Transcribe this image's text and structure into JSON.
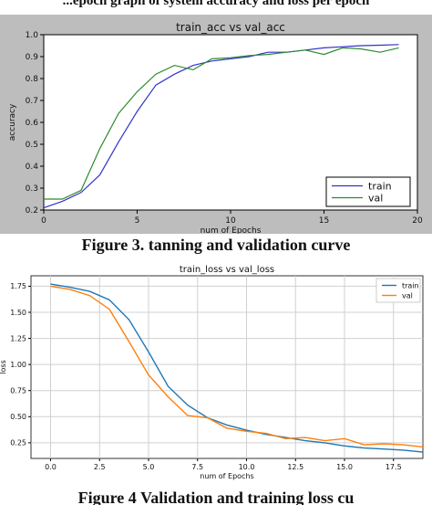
{
  "header_fragment": "...epoch graph of system accuracy and loss per epoch",
  "captions": {
    "fig3": "Figure 3. tanning and validation curve",
    "fig4": "Figure 4 Validation and training loss cu"
  },
  "chart_data": [
    {
      "type": "line",
      "title": "train_acc vs val_acc",
      "xlabel": "num of Epochs",
      "ylabel": "accuracy",
      "xlim": [
        0,
        20
      ],
      "ylim": [
        0.2,
        1.0
      ],
      "xticks": [
        "0",
        "5",
        "10",
        "15",
        "20"
      ],
      "yticks": [
        "0.2",
        "0.3",
        "0.4",
        "0.5",
        "0.6",
        "0.7",
        "0.8",
        "0.9",
        "1.0"
      ],
      "grid": false,
      "legend_position": "lower-right",
      "background": "#bdbdbd",
      "x": [
        0,
        1,
        2,
        3,
        4,
        5,
        6,
        7,
        8,
        9,
        10,
        11,
        12,
        13,
        14,
        15,
        16,
        17,
        18,
        19
      ],
      "series": [
        {
          "name": "train",
          "color": "#3333cc",
          "values": [
            0.21,
            0.24,
            0.28,
            0.36,
            0.51,
            0.65,
            0.77,
            0.82,
            0.86,
            0.88,
            0.89,
            0.9,
            0.92,
            0.92,
            0.93,
            0.94,
            0.945,
            0.95,
            0.952,
            0.955
          ]
        },
        {
          "name": "val",
          "color": "#2e8b2e",
          "values": [
            0.25,
            0.25,
            0.29,
            0.48,
            0.64,
            0.74,
            0.82,
            0.86,
            0.84,
            0.89,
            0.895,
            0.905,
            0.91,
            0.92,
            0.93,
            0.91,
            0.94,
            0.935,
            0.92,
            0.94
          ]
        }
      ]
    },
    {
      "type": "line",
      "title": "train_loss vs val_loss",
      "xlabel": "num of Epochs",
      "ylabel": "loss",
      "xlim": [
        -1,
        19
      ],
      "ylim": [
        0.1,
        1.85
      ],
      "xticks": [
        "0.0",
        "2.5",
        "5.0",
        "7.5",
        "10.0",
        "12.5",
        "15.0",
        "17.5"
      ],
      "yticks": [
        "0.25",
        "0.50",
        "0.75",
        "1.00",
        "1.25",
        "1.50",
        "1.75"
      ],
      "grid": true,
      "legend_position": "top-right",
      "background": "#ffffff",
      "x": [
        0,
        1,
        2,
        3,
        4,
        5,
        6,
        7,
        8,
        9,
        10,
        11,
        12,
        13,
        14,
        15,
        16,
        17,
        18,
        19
      ],
      "series": [
        {
          "name": "train",
          "color": "#1f77b4",
          "values": [
            1.77,
            1.74,
            1.7,
            1.62,
            1.43,
            1.12,
            0.79,
            0.61,
            0.49,
            0.42,
            0.37,
            0.33,
            0.3,
            0.27,
            0.25,
            0.22,
            0.2,
            0.19,
            0.18,
            0.16
          ]
        },
        {
          "name": "val",
          "color": "#ff7f0e",
          "values": [
            1.75,
            1.72,
            1.66,
            1.53,
            1.22,
            0.9,
            0.69,
            0.51,
            0.49,
            0.39,
            0.36,
            0.34,
            0.29,
            0.3,
            0.27,
            0.29,
            0.23,
            0.24,
            0.23,
            0.21
          ]
        }
      ]
    }
  ]
}
